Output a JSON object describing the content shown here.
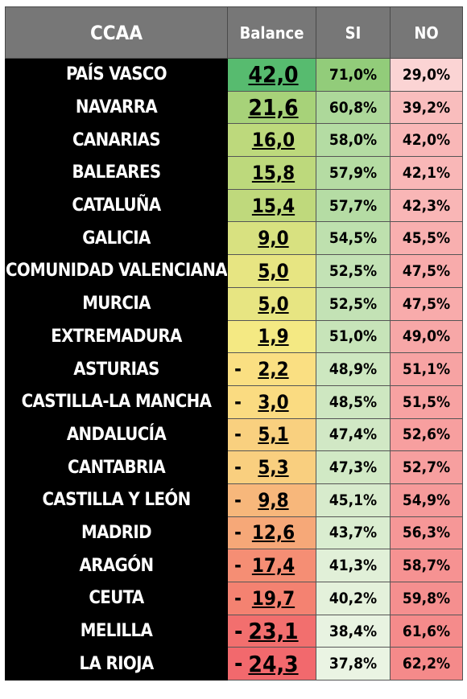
{
  "chart_data": {
    "type": "table",
    "columns": [
      "CCAA",
      "Balance",
      "SI",
      "NO"
    ],
    "rows": [
      {
        "ccaa": "PAÍS VASCO",
        "balance_neg": "",
        "balance": "42,0",
        "si": "71,0%",
        "no": "29,0%",
        "value": 42.0
      },
      {
        "ccaa": "NAVARRA",
        "balance_neg": "",
        "balance": "21,6",
        "si": "60,8%",
        "no": "39,2%",
        "value": 21.6
      },
      {
        "ccaa": "CANARIAS",
        "balance_neg": "",
        "balance": "16,0",
        "si": "58,0%",
        "no": "42,0%",
        "value": 16.0
      },
      {
        "ccaa": "BALEARES",
        "balance_neg": "",
        "balance": "15,8",
        "si": "57,9%",
        "no": "42,1%",
        "value": 15.8
      },
      {
        "ccaa": "CATALUÑA",
        "balance_neg": "",
        "balance": "15,4",
        "si": "57,7%",
        "no": "42,3%",
        "value": 15.4
      },
      {
        "ccaa": "GALICIA",
        "balance_neg": "",
        "balance": "9,0",
        "si": "54,5%",
        "no": "45,5%",
        "value": 9.0
      },
      {
        "ccaa": "COMUNIDAD VALENCIANA",
        "balance_neg": "",
        "balance": "5,0",
        "si": "52,5%",
        "no": "47,5%",
        "value": 5.0
      },
      {
        "ccaa": "MURCIA",
        "balance_neg": "",
        "balance": "5,0",
        "si": "52,5%",
        "no": "47,5%",
        "value": 5.0
      },
      {
        "ccaa": "EXTREMADURA",
        "balance_neg": "",
        "balance": "1,9",
        "si": "51,0%",
        "no": "49,0%",
        "value": 1.9
      },
      {
        "ccaa": "ASTURIAS",
        "balance_neg": "-",
        "balance": "2,2",
        "si": "48,9%",
        "no": "51,1%",
        "value": -2.2
      },
      {
        "ccaa": "CASTILLA-LA MANCHA",
        "balance_neg": "-",
        "balance": "3,0",
        "si": "48,5%",
        "no": "51,5%",
        "value": -3.0
      },
      {
        "ccaa": "ANDALUCÍA",
        "balance_neg": "-",
        "balance": "5,1",
        "si": "47,4%",
        "no": "52,6%",
        "value": -5.1
      },
      {
        "ccaa": "CANTABRIA",
        "balance_neg": "-",
        "balance": "5,3",
        "si": "47,3%",
        "no": "52,7%",
        "value": -5.3
      },
      {
        "ccaa": "CASTILLA Y LEÓN",
        "balance_neg": "-",
        "balance": "9,8",
        "si": "45,1%",
        "no": "54,9%",
        "value": -9.8
      },
      {
        "ccaa": "MADRID",
        "balance_neg": "-",
        "balance": "12,6",
        "si": "43,7%",
        "no": "56,3%",
        "value": -12.6
      },
      {
        "ccaa": "ARAGÓN",
        "balance_neg": "-",
        "balance": "17,4",
        "si": "41,3%",
        "no": "58,7%",
        "value": -17.4
      },
      {
        "ccaa": "CEUTA",
        "balance_neg": "-",
        "balance": "19,7",
        "si": "40,2%",
        "no": "59,8%",
        "value": -19.7
      },
      {
        "ccaa": "MELILLA",
        "balance_neg": "-",
        "balance": "23,1",
        "si": "38,4%",
        "no": "61,6%",
        "value": -23.1
      },
      {
        "ccaa": "LA RIOJA",
        "balance_neg": "-",
        "balance": "24,3",
        "si": "37,8%",
        "no": "62,2%",
        "value": -24.3
      }
    ],
    "colors": {
      "header_bg": "#777777",
      "header_text": "#ffffff",
      "name_bg": "#000000",
      "name_text": "#ffffff",
      "balance_high": "#57bb6f",
      "balance_mid": "#fbeb84",
      "balance_low": "#f2696d",
      "si_high": "#92cc7a",
      "si_low": "#eaf4e3",
      "no_low": "#fbd4d4",
      "no_high": "#f58a8a"
    }
  }
}
